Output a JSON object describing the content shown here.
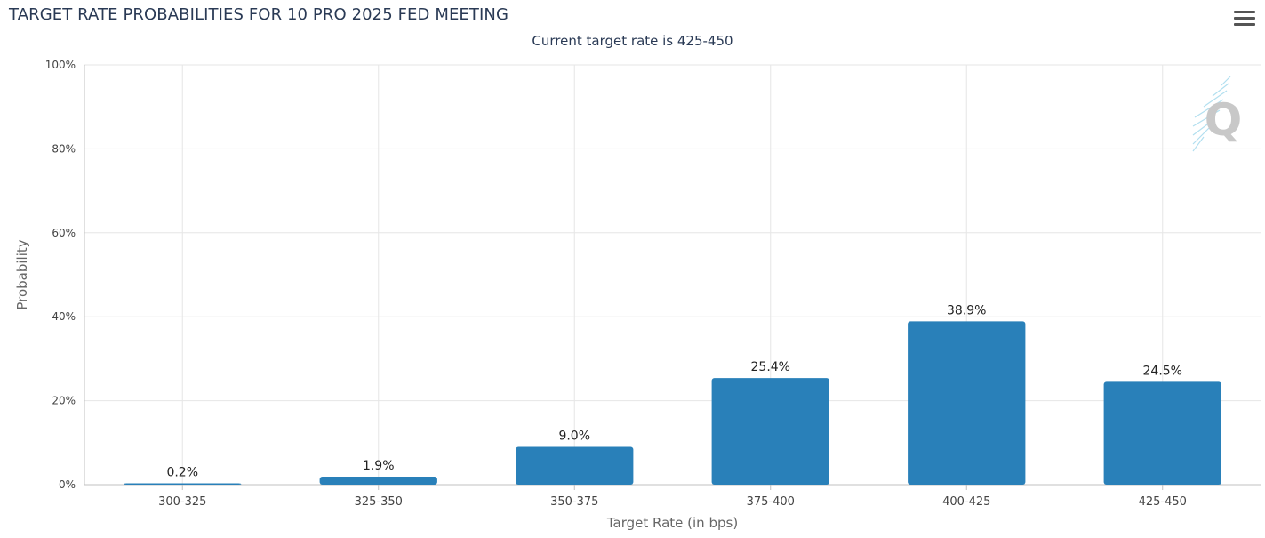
{
  "header": {
    "title": "TARGET RATE PROBABILITIES FOR 10 PRO 2025 FED MEETING",
    "subtitle": "Current target rate is 425-450"
  },
  "watermark": {
    "letter": "Q"
  },
  "colors": {
    "bar": "#2980b9",
    "grid": "#e6e6e6",
    "axis": "#c0c0c0",
    "title": "#2a3a55",
    "tick": "#444444",
    "label": "#666666"
  },
  "chart_data": {
    "type": "bar",
    "title": "TARGET RATE PROBABILITIES FOR 10 PRO 2025 FED MEETING",
    "subtitle": "Current target rate is 425-450",
    "xlabel": "Target Rate (in bps)",
    "ylabel": "Probability",
    "categories": [
      "300-325",
      "325-350",
      "350-375",
      "375-400",
      "400-425",
      "425-450"
    ],
    "values": [
      0.2,
      1.9,
      9.0,
      25.4,
      38.9,
      24.5
    ],
    "data_labels": [
      "0.2%",
      "1.9%",
      "9.0%",
      "25.4%",
      "38.9%",
      "24.5%"
    ],
    "ylim": [
      0,
      100
    ],
    "yticks": [
      0,
      20,
      40,
      60,
      80,
      100
    ],
    "ytick_labels": [
      "0%",
      "20%",
      "40%",
      "60%",
      "80%",
      "100%"
    ],
    "grid": true,
    "legend": "none"
  }
}
